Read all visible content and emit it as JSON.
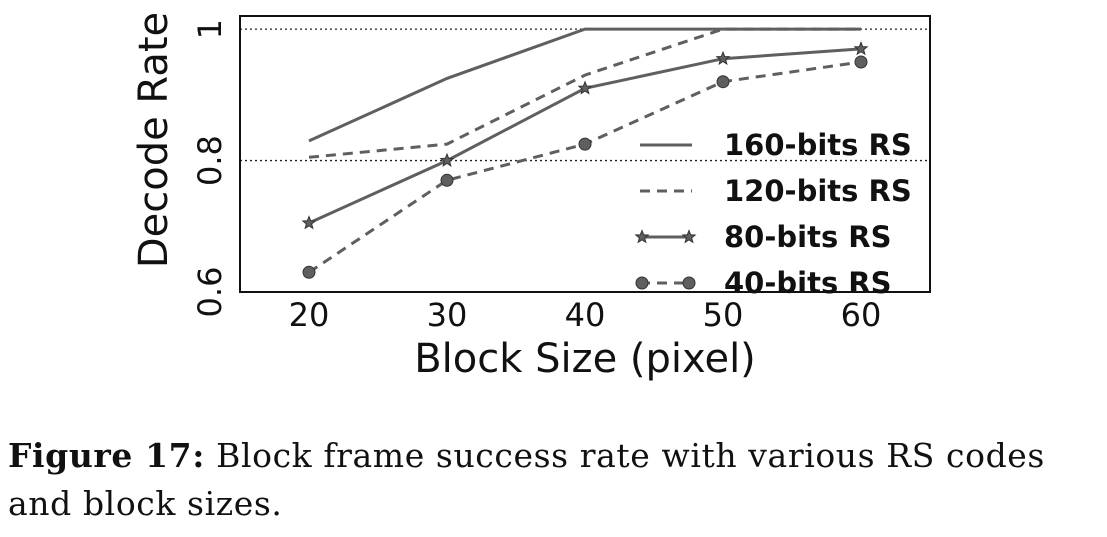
{
  "chart_data": {
    "type": "line",
    "xlabel": "Block Size (pixel)",
    "ylabel": "Decode Rate",
    "x": [
      20,
      30,
      40,
      50,
      60
    ],
    "xticks": [
      "20",
      "30",
      "40",
      "50",
      "60"
    ],
    "yticks": [
      "0.6",
      "0.8",
      "1"
    ],
    "xlim": [
      15,
      65
    ],
    "ylim": [
      0.6,
      1.02
    ],
    "grid": "dotted at 0.8 and 1",
    "legend_position": "lower-right",
    "series": [
      {
        "name": "160-bits RS",
        "values": [
          0.83,
          0.925,
          1.0,
          1.0,
          1.0
        ],
        "style": "solid",
        "marker": "none",
        "color": "#5f5f5f"
      },
      {
        "name": "120-bits RS",
        "values": [
          0.805,
          0.825,
          0.93,
          1.0,
          1.0
        ],
        "style": "dashed",
        "marker": "none",
        "color": "#5f5f5f"
      },
      {
        "name": "80-bits RS",
        "values": [
          0.705,
          0.8,
          0.91,
          0.955,
          0.97
        ],
        "style": "solid",
        "marker": "star",
        "color": "#5f5f5f"
      },
      {
        "name": "40-bits RS",
        "values": [
          0.63,
          0.77,
          0.825,
          0.92,
          0.95
        ],
        "style": "dashed",
        "marker": "circle",
        "color": "#5f5f5f"
      }
    ]
  },
  "caption": {
    "label": "Figure 17:",
    "text": " Block frame success rate with various RS codes and block sizes."
  }
}
